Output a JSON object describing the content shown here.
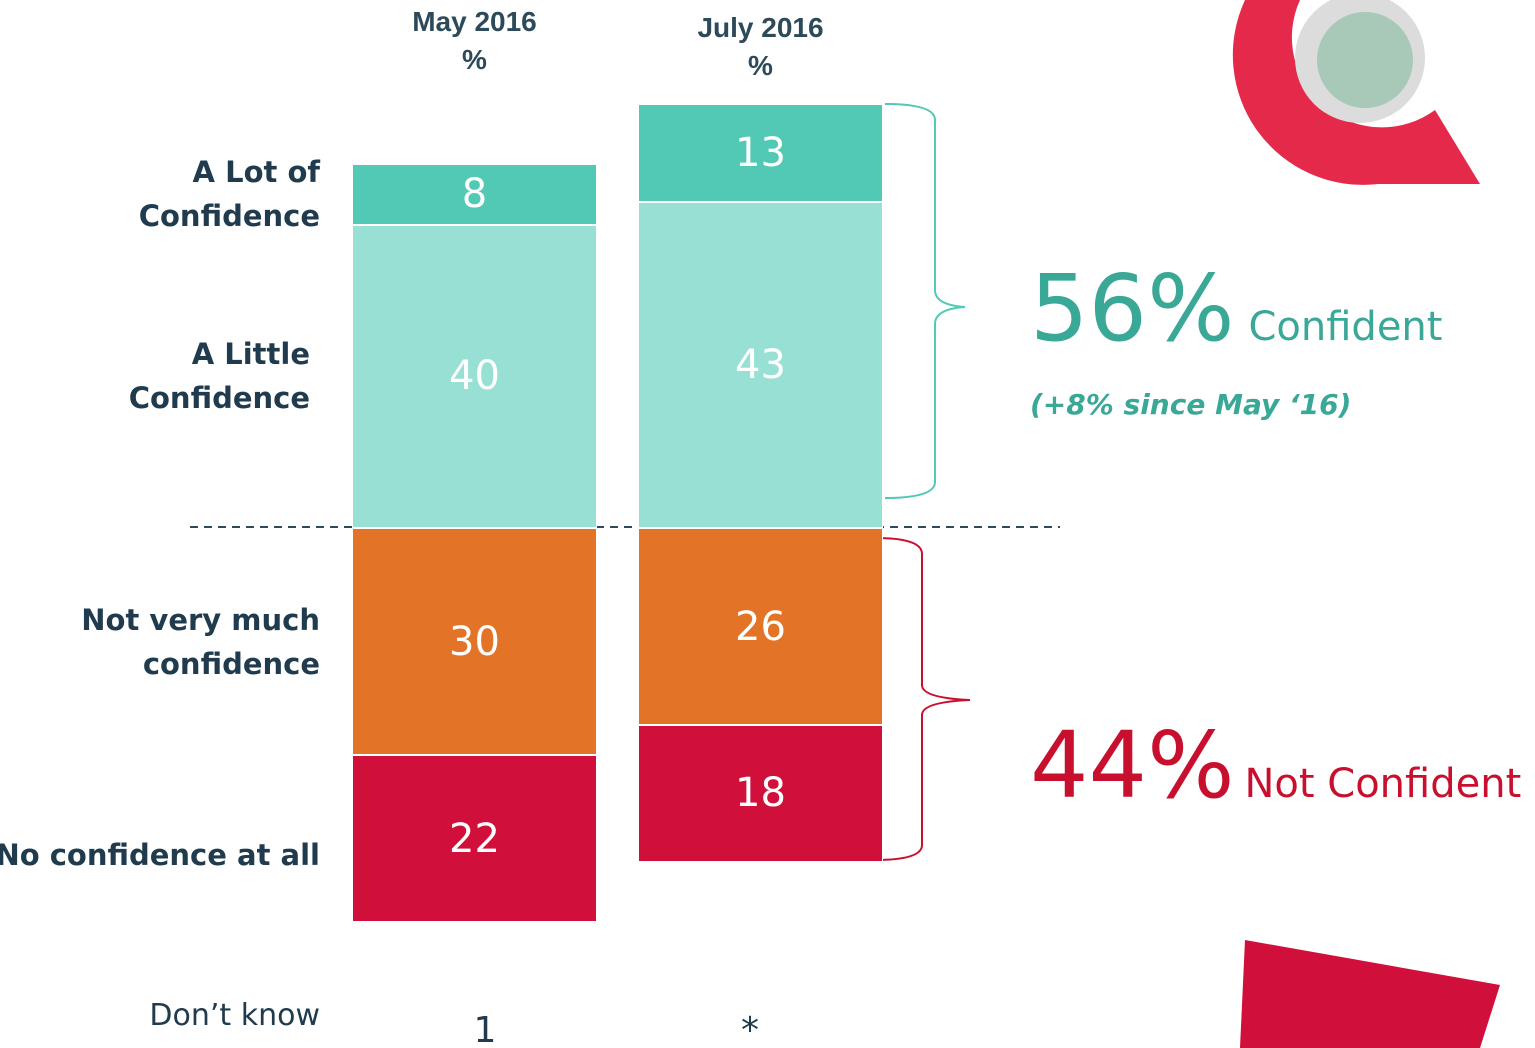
{
  "chart_data": {
    "type": "diverging-stacked-bar",
    "categories": [
      "May 2016",
      "July 2016"
    ],
    "unit": "%",
    "series": [
      {
        "name": "A Lot of Confidence",
        "color": "#52c9b5",
        "values": [
          8,
          13
        ]
      },
      {
        "name": "A Little Confidence",
        "color": "#98e0d4",
        "values": [
          40,
          43
        ]
      },
      {
        "name": "Not very much confidence",
        "color": "#e37326",
        "values": [
          30,
          26
        ]
      },
      {
        "name": "No confidence at all",
        "color": "#d0103a",
        "values": [
          22,
          18
        ]
      }
    ],
    "dont_know": {
      "label": "Don’t know",
      "values": [
        1,
        null
      ],
      "value_labels": [
        "1",
        "*"
      ]
    },
    "annotations": {
      "confident_total": "56%",
      "confident_label": "Confident",
      "confident_change": "(+8% since May ‘16)",
      "not_confident_total": "44%",
      "not_confident_label": "Not Confident"
    }
  }
}
